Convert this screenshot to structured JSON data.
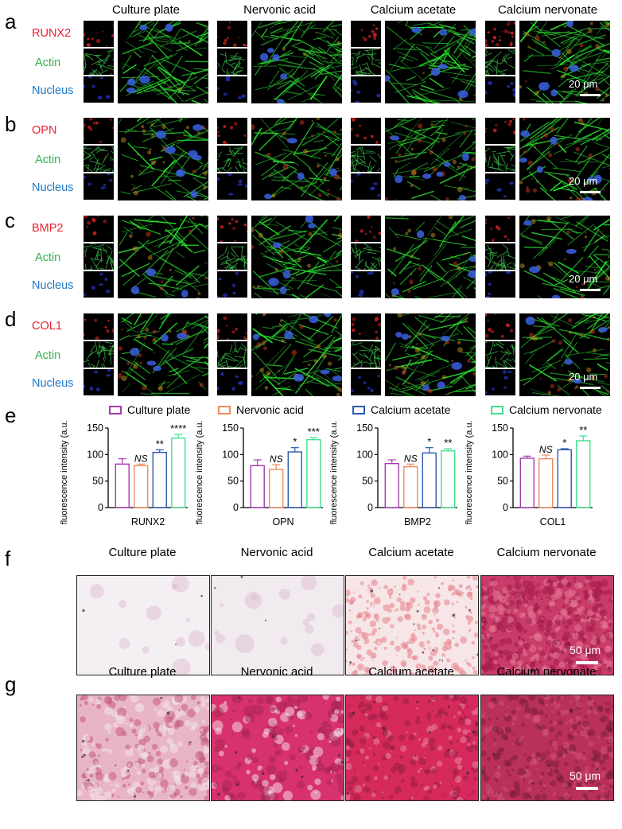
{
  "panel_letters": [
    "a",
    "b",
    "c",
    "d",
    "e",
    "f",
    "g"
  ],
  "conditions": [
    "Culture plate",
    "Nervonic acid",
    "Calcium acetate",
    "Calcium nervonate"
  ],
  "fluor_rows": [
    {
      "marker": "RUNX2",
      "channels": [
        "RUNX2",
        "Actin",
        "Nucleus"
      ],
      "scale": "20 μm"
    },
    {
      "marker": "OPN",
      "channels": [
        "OPN",
        "Actin",
        "Nucleus"
      ],
      "scale": "20 μm"
    },
    {
      "marker": "BMP2",
      "channels": [
        "BMP2",
        "Actin",
        "Nucleus"
      ],
      "scale": "20 μm"
    },
    {
      "marker": "COL1",
      "channels": [
        "COL1",
        "Actin",
        "Nucleus"
      ],
      "scale": "20 μm"
    }
  ],
  "colors": {
    "marker_label": "#e8232d",
    "actin_label": "#2fb34a",
    "nucleus_label": "#1f78c8",
    "culture_plate": "#a43aae",
    "nervonic_acid": "#f08a5d",
    "calcium_acetate": "#2a58b0",
    "calcium_nervonate": "#3fe28f"
  },
  "legend": [
    "Culture plate",
    "Nervonic acid",
    "Calcium acetate",
    "Calcium nervonate"
  ],
  "chart_data": [
    {
      "type": "bar",
      "xlabel": "RUNX2",
      "ylabel": "fluorescence intensity (a.u.)",
      "ylim": [
        0,
        150
      ],
      "yticks": [
        0,
        50,
        100,
        150
      ],
      "categories": [
        "Culture plate",
        "Nervonic acid",
        "Calcium acetate",
        "Calcium nervonate"
      ],
      "values": [
        82,
        79,
        104,
        131
      ],
      "errors": [
        10,
        3,
        5,
        7
      ],
      "significance": [
        "",
        "NS",
        "**",
        "****"
      ]
    },
    {
      "type": "bar",
      "xlabel": "OPN",
      "ylabel": "fluorescence intensity (a.u.)",
      "ylim": [
        0,
        150
      ],
      "yticks": [
        0,
        50,
        100,
        150
      ],
      "categories": [
        "Culture plate",
        "Nervonic acid",
        "Calcium acetate",
        "Calcium nervonate"
      ],
      "values": [
        79,
        72,
        105,
        128
      ],
      "errors": [
        11,
        9,
        8,
        4
      ],
      "significance": [
        "",
        "NS",
        "*",
        "***"
      ]
    },
    {
      "type": "bar",
      "xlabel": "BMP2",
      "ylabel": "fluorescence intensity (a.u.)",
      "ylim": [
        0,
        150
      ],
      "yticks": [
        0,
        50,
        100,
        150
      ],
      "categories": [
        "Culture plate",
        "Nervonic acid",
        "Calcium acetate",
        "Calcium nervonate"
      ],
      "values": [
        83,
        77,
        103,
        107
      ],
      "errors": [
        7,
        5,
        10,
        4
      ],
      "significance": [
        "",
        "NS",
        "*",
        "**"
      ]
    },
    {
      "type": "bar",
      "xlabel": "COL1",
      "ylabel": "fluorescence intensity (a.u.)",
      "ylim": [
        0,
        150
      ],
      "yticks": [
        0,
        50,
        100,
        150
      ],
      "categories": [
        "Culture plate",
        "Nervonic acid",
        "Calcium acetate",
        "Calcium nervonate"
      ],
      "values": [
        93,
        92,
        109,
        126
      ],
      "errors": [
        4,
        7,
        2,
        9
      ],
      "significance": [
        "",
        "NS",
        "*",
        "**"
      ]
    }
  ],
  "stain_rows": [
    {
      "letter": "f",
      "titles": [
        "Culture plate",
        "Nervonic acid",
        "Calcium acetate",
        "Calcium nervonate"
      ],
      "scale": "50 μm"
    },
    {
      "letter": "g",
      "titles": [
        "Culture plate",
        "Nervonic acid",
        "Calcium acetate",
        "Calcium nervonate"
      ],
      "scale": "50 μm"
    }
  ]
}
